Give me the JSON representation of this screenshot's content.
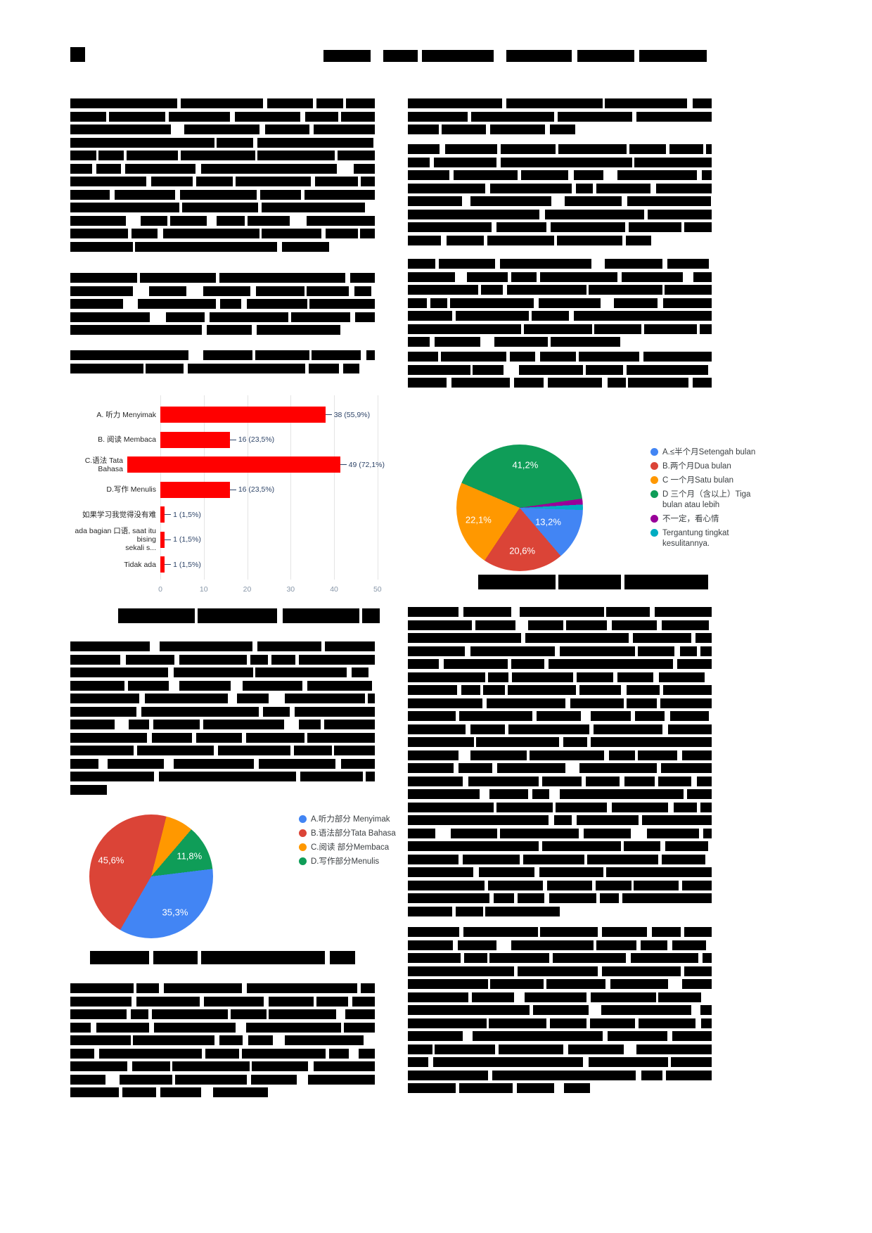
{
  "page": {
    "kind": "journal-article-page",
    "note": "body text redacted (black bars)"
  },
  "chart_data": [
    {
      "id": "difficulty_bar",
      "type": "bar",
      "orientation": "horizontal",
      "bar_color": "#ff0000",
      "value_color": "#2e4468",
      "x_ticks": [
        "0",
        "10",
        "20",
        "30",
        "40",
        "50"
      ],
      "x_tick_values": [
        0,
        10,
        20,
        30,
        40,
        50
      ],
      "x_max": 51,
      "rows": [
        {
          "label_lines": [
            "A. 听力 Menyimak"
          ],
          "value": 38,
          "value_label": "38 (55,9%)"
        },
        {
          "label_lines": [
            "B. 阅读 Membaca"
          ],
          "value": 16,
          "value_label": "16 (23,5%)"
        },
        {
          "label_lines": [
            "C.语法 Tata Bahasa"
          ],
          "value": 49,
          "value_label": "49 (72,1%)"
        },
        {
          "label_lines": [
            "D.写作 Menulis"
          ],
          "value": 16,
          "value_label": "16 (23,5%)"
        },
        {
          "label_lines": [
            "如果学习我觉得没有难"
          ],
          "value": 1,
          "value_label": "1 (1,5%)"
        },
        {
          "label_lines": [
            "ada bagian 口语, saat itu bising",
            "sekali s..."
          ],
          "value": 1,
          "value_label": "1 (1,5%)"
        },
        {
          "label_lines": [
            "Tidak ada"
          ],
          "value": 1,
          "value_label": "1 (1,5%)"
        }
      ]
    },
    {
      "id": "duration_pie",
      "type": "pie",
      "start_angle": 92,
      "label_radius": 0.68,
      "slices": [
        {
          "label": "A.≤半个月Setengah bulan",
          "color": "#4285f4",
          "pct": 13.2,
          "pct_label": "13,2%",
          "show_pct": true,
          "label_radius": 0.5
        },
        {
          "label": "B.两个月Dua bulan",
          "color": "#db4437",
          "pct": 20.6,
          "pct_label": "20,6%",
          "show_pct": true
        },
        {
          "label": "C 一个月Satu bulan",
          "color": "#ff9800",
          "pct": 22.1,
          "pct_label": "22,1%",
          "show_pct": true
        },
        {
          "label": "D 三个月（含以上）Tiga bulan atau lebih",
          "color": "#0f9d58",
          "pct": 41.2,
          "pct_label": "41,2%",
          "show_pct": true
        },
        {
          "label": "不一定，看心情",
          "color": "#990099",
          "pct": 1.5,
          "show_pct": false
        },
        {
          "label": "Tergantung tingkat kesulitannya.",
          "color": "#00acc1",
          "pct": 1.6,
          "show_pct": false
        }
      ]
    },
    {
      "id": "section_pie",
      "type": "pie",
      "start_angle": 83,
      "label_radius": 0.7,
      "slices": [
        {
          "label": "A.听力部分 Menyimak",
          "color": "#4285f4",
          "pct": 35.3,
          "pct_label": "35,3%",
          "show_pct": true
        },
        {
          "label": "B.语法部分Tata Bahasa",
          "color": "#db4437",
          "pct": 45.6,
          "pct_label": "45,6%",
          "show_pct": true
        },
        {
          "label": "C.阅读 部分Membaca",
          "color": "#ff9800",
          "pct": 7.3,
          "show_pct": false
        },
        {
          "label": "D.写作部分Menulis",
          "color": "#0f9d58",
          "pct": 11.8,
          "pct_label": "11,8%",
          "show_pct": true
        }
      ]
    }
  ]
}
